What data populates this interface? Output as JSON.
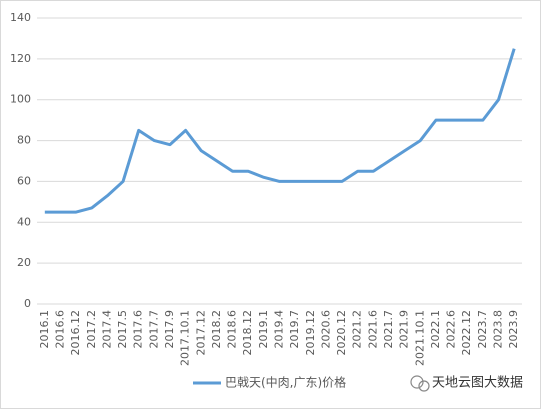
{
  "chart_data": {
    "type": "line",
    "categories": [
      "2016.1",
      "2016.6",
      "2016.12",
      "2017.2",
      "2017.4",
      "2017.5",
      "2017.6",
      "2017.7",
      "2017.9",
      "2017.10.1",
      "2017.12",
      "2018.2",
      "2018.6",
      "2018.12",
      "2019.1",
      "2019.4",
      "2019.7",
      "2019.12",
      "2020.6",
      "2020.12",
      "2021.2",
      "2021.6",
      "2021.7",
      "2021.9",
      "2021.10.1",
      "2022.1",
      "2022.6",
      "2022.12",
      "2023.7",
      "2023.8",
      "2023.9"
    ],
    "series": [
      {
        "name": "巴戟天(中肉,广东)价格",
        "color": "#5b9bd5",
        "values": [
          45,
          45,
          45,
          47,
          53,
          60,
          85,
          80,
          78,
          85,
          75,
          70,
          65,
          65,
          62,
          60,
          60,
          60,
          60,
          60,
          65,
          65,
          70,
          75,
          80,
          90,
          90,
          90,
          90,
          100,
          125
        ]
      }
    ],
    "ylim": [
      0,
      140
    ],
    "yticks": [
      0,
      20,
      40,
      60,
      80,
      100,
      120,
      140
    ],
    "grid": true,
    "legend": "bottom",
    "watermark": "天地云图大数据"
  }
}
